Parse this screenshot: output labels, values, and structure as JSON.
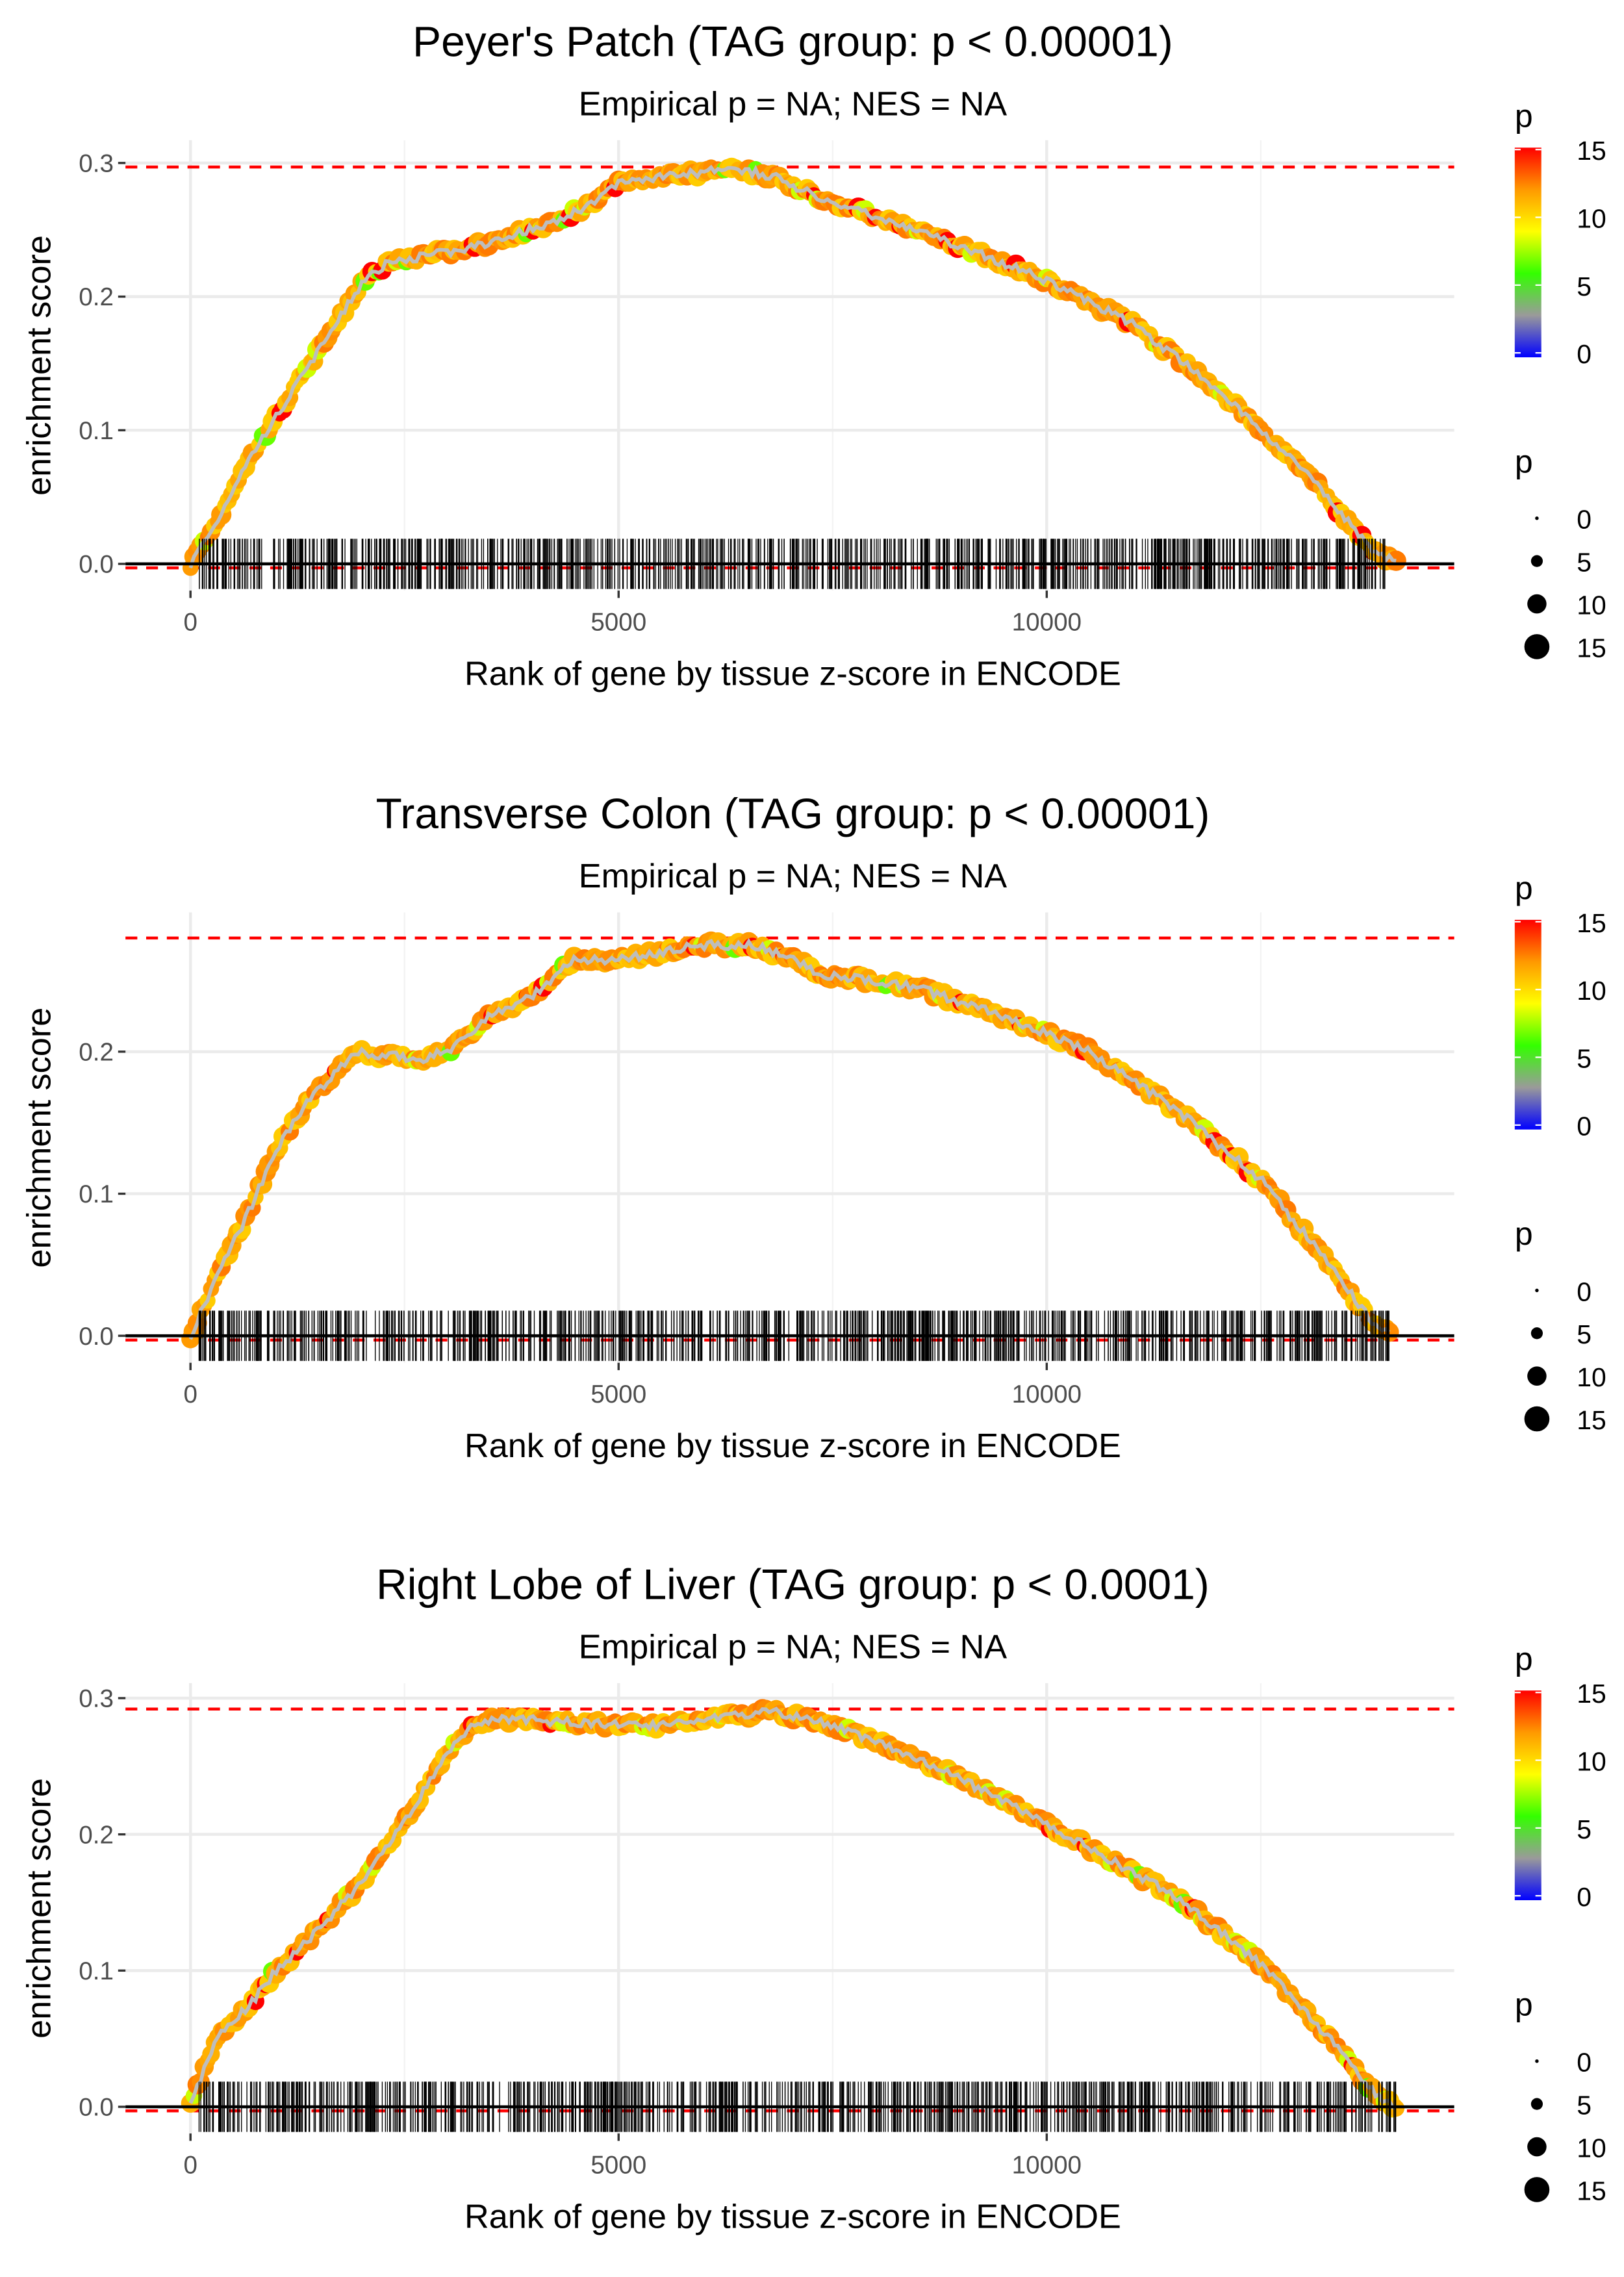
{
  "chart_data": [
    {
      "type": "scatter",
      "title": "Peyer's Patch (TAG group: p < 0.00001)",
      "subtitle": "Empirical p = NA; NES = NA",
      "xlabel": "Rank of gene by tissue z-score in ENCODE",
      "ylabel": "enrichment score",
      "xlim": [
        -759,
        14759
      ],
      "ylim": [
        -0.02,
        0.317
      ],
      "xticks": [
        0,
        5000,
        10000
      ],
      "xtick_labels": [
        "0",
        "5000",
        "10000"
      ],
      "yticks": [
        0.0,
        0.1,
        0.2,
        0.3
      ],
      "ytick_labels": [
        "0.0",
        "0.1",
        "0.2",
        "0.3"
      ],
      "max_es": 0.297,
      "min_es": -0.003,
      "rug_range": [
        0,
        14000
      ],
      "curve": [
        [
          0,
          0
        ],
        [
          300,
          0.03
        ],
        [
          600,
          0.07
        ],
        [
          900,
          0.1
        ],
        [
          1200,
          0.13
        ],
        [
          1500,
          0.16
        ],
        [
          1800,
          0.19
        ],
        [
          2000,
          0.21
        ],
        [
          2300,
          0.225
        ],
        [
          2700,
          0.23
        ],
        [
          3200,
          0.235
        ],
        [
          3700,
          0.245
        ],
        [
          4200,
          0.255
        ],
        [
          4700,
          0.27
        ],
        [
          5000,
          0.285
        ],
        [
          5500,
          0.29
        ],
        [
          6000,
          0.293
        ],
        [
          6300,
          0.297
        ],
        [
          6800,
          0.29
        ],
        [
          7500,
          0.27
        ],
        [
          8500,
          0.25
        ],
        [
          9500,
          0.225
        ],
        [
          10000,
          0.212
        ],
        [
          11000,
          0.18
        ],
        [
          12000,
          0.13
        ],
        [
          13000,
          0.07
        ],
        [
          13800,
          0.01
        ],
        [
          14100,
          0
        ]
      ],
      "grid": true
    },
    {
      "type": "scatter",
      "title": "Transverse Colon (TAG group: p < 0.00001)",
      "subtitle": "Empirical p = NA; NES = NA",
      "xlabel": "Rank of gene by tissue z-score in ENCODE",
      "ylabel": "enrichment score",
      "xlim": [
        -759,
        14759
      ],
      "ylim": [
        -0.019,
        0.298
      ],
      "xticks": [
        0,
        5000,
        10000
      ],
      "xtick_labels": [
        "0",
        "5000",
        "10000"
      ],
      "yticks": [
        0.0,
        0.1,
        0.2
      ],
      "ytick_labels": [
        "0.0",
        "0.1",
        "0.2"
      ],
      "max_es": 0.28,
      "min_es": -0.003,
      "rug_range": [
        0,
        14000
      ],
      "curve": [
        [
          0,
          0
        ],
        [
          300,
          0.04
        ],
        [
          700,
          0.09
        ],
        [
          1000,
          0.13
        ],
        [
          1300,
          0.16
        ],
        [
          1700,
          0.185
        ],
        [
          1900,
          0.2
        ],
        [
          2300,
          0.197
        ],
        [
          2700,
          0.195
        ],
        [
          3000,
          0.2
        ],
        [
          3500,
          0.225
        ],
        [
          4000,
          0.24
        ],
        [
          4500,
          0.265
        ],
        [
          5000,
          0.265
        ],
        [
          5500,
          0.27
        ],
        [
          6000,
          0.275
        ],
        [
          6500,
          0.275
        ],
        [
          7000,
          0.268
        ],
        [
          7300,
          0.255
        ],
        [
          8000,
          0.25
        ],
        [
          8500,
          0.245
        ],
        [
          9500,
          0.225
        ],
        [
          10500,
          0.2
        ],
        [
          11500,
          0.16
        ],
        [
          12500,
          0.11
        ],
        [
          13300,
          0.05
        ],
        [
          13800,
          0.01
        ],
        [
          14000,
          0
        ]
      ],
      "grid": true
    },
    {
      "type": "scatter",
      "title": "Right Lobe of Liver (TAG group: p < 0.0001)",
      "subtitle": "Empirical p = NA; NES = NA",
      "xlabel": "Rank of gene by tissue z-score in ENCODE",
      "ylabel": "enrichment score",
      "xlim": [
        -759,
        14759
      ],
      "ylim": [
        -0.0196,
        0.311
      ],
      "xticks": [
        0,
        5000,
        10000
      ],
      "xtick_labels": [
        "0",
        "5000",
        "10000"
      ],
      "yticks": [
        0.0,
        0.1,
        0.2,
        0.3
      ],
      "ytick_labels": [
        "0.0",
        "0.1",
        "0.2",
        "0.3"
      ],
      "max_es": 0.292,
      "min_es": -0.003,
      "rug_range": [
        0,
        14100
      ],
      "curve": [
        [
          0,
          0
        ],
        [
          300,
          0.05
        ],
        [
          700,
          0.075
        ],
        [
          1000,
          0.1
        ],
        [
          1500,
          0.13
        ],
        [
          2000,
          0.165
        ],
        [
          2500,
          0.21
        ],
        [
          3000,
          0.26
        ],
        [
          3300,
          0.28
        ],
        [
          3700,
          0.285
        ],
        [
          4500,
          0.282
        ],
        [
          5500,
          0.28
        ],
        [
          6000,
          0.285
        ],
        [
          6800,
          0.29
        ],
        [
          7500,
          0.28
        ],
        [
          8500,
          0.255
        ],
        [
          9500,
          0.225
        ],
        [
          10500,
          0.19
        ],
        [
          11500,
          0.155
        ],
        [
          12500,
          0.105
        ],
        [
          13300,
          0.05
        ],
        [
          13900,
          0.005
        ],
        [
          14100,
          0
        ]
      ],
      "grid": true
    }
  ],
  "legend": {
    "color_title": "p",
    "color_ticks": [
      "0",
      "5",
      "10",
      "15"
    ],
    "color_range": [
      0,
      15
    ],
    "colors": [
      "#0000ff",
      "#9a9a9a",
      "#33ff00",
      "#ffff00",
      "#ff9900",
      "#ff0000"
    ],
    "size_title": "p",
    "size_values": [
      "0",
      "5",
      "10",
      "15"
    ],
    "placement": "right"
  }
}
